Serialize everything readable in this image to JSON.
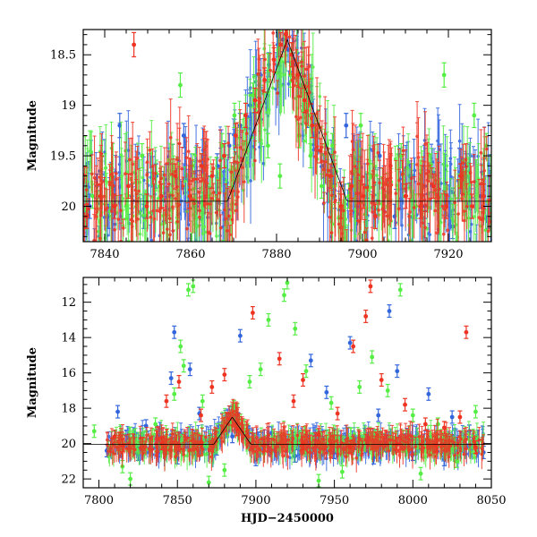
{
  "chart_data": [
    {
      "type": "scatter",
      "panel": "top",
      "title": "",
      "xlabel": "",
      "ylabel": "Magnitude",
      "xlim": [
        7835,
        7930
      ],
      "ylim": [
        20.35,
        18.25
      ],
      "y_inverted": true,
      "x_ticks": [
        7840,
        7860,
        7880,
        7900,
        7920
      ],
      "x_tick_labels": [
        "7840",
        "7860",
        "7880",
        "7900",
        "7920"
      ],
      "y_ticks": [
        18.5,
        19,
        19.5,
        20
      ],
      "y_tick_labels": [
        "18.5",
        "19",
        "19.5",
        "20"
      ],
      "grid": false,
      "legend": "none",
      "series": [
        {
          "color": "#3366dd",
          "points": [
            [
              7836.5,
              20.0
            ],
            [
              7838.2,
              19.8
            ],
            [
              7840.8,
              20.1
            ],
            [
              7843.5,
              19.2
            ],
            [
              7846.3,
              19.9
            ],
            [
              7849.1,
              20.1
            ],
            [
              7852.0,
              19.7
            ],
            [
              7855.2,
              19.9
            ],
            [
              7858.4,
              19.3
            ],
            [
              7861.0,
              20.0
            ],
            [
              7863.5,
              19.8
            ],
            [
              7866.2,
              19.6
            ],
            [
              7869.0,
              19.4
            ],
            [
              7871.5,
              19.2
            ],
            [
              7873.8,
              19.0
            ],
            [
              7876.0,
              18.8
            ],
            [
              7878.2,
              18.6
            ],
            [
              7880.3,
              18.4
            ],
            [
              7881.5,
              18.35
            ],
            [
              7882.7,
              18.45
            ],
            [
              7884.0,
              18.6
            ],
            [
              7885.5,
              18.8
            ],
            [
              7887.2,
              19.1
            ],
            [
              7889.0,
              19.3
            ],
            [
              7891.0,
              19.6
            ],
            [
              7893.5,
              19.9
            ],
            [
              7896.2,
              19.2
            ],
            [
              7898.5,
              20.0
            ],
            [
              7901.0,
              19.8
            ],
            [
              7904.0,
              19.5
            ],
            [
              7907.5,
              20.1
            ],
            [
              7911.0,
              19.7
            ],
            [
              7914.5,
              20.0
            ],
            [
              7917.8,
              19.9
            ],
            [
              7921.0,
              20.2
            ],
            [
              7924.2,
              19.6
            ],
            [
              7927.5,
              19.9
            ],
            [
              7929.3,
              20.1
            ]
          ]
        },
        {
          "color": "#55ee44",
          "points": [
            [
              7837.2,
              19.9
            ],
            [
              7841.5,
              19.7
            ],
            [
              7845.0,
              20.0
            ],
            [
              7848.7,
              19.5
            ],
            [
              7852.8,
              19.8
            ],
            [
              7857.6,
              18.8
            ],
            [
              7860.5,
              19.6
            ],
            [
              7864.0,
              19.9
            ],
            [
              7867.3,
              19.4
            ],
            [
              7870.2,
              19.1
            ],
            [
              7874.5,
              18.9
            ],
            [
              7878.0,
              19.4
            ],
            [
              7880.8,
              19.7
            ],
            [
              7883.2,
              18.7
            ],
            [
              7885.3,
              19.3
            ],
            [
              7887.9,
              19.5
            ],
            [
              7890.5,
              19.8
            ],
            [
              7893.0,
              19.4
            ],
            [
              7896.8,
              19.9
            ],
            [
              7899.6,
              19.2
            ],
            [
              7902.3,
              19.7
            ],
            [
              7905.7,
              19.9
            ],
            [
              7909.0,
              19.5
            ],
            [
              7912.4,
              20.0
            ],
            [
              7915.8,
              19.6
            ],
            [
              7919.0,
              18.7
            ],
            [
              7922.5,
              19.8
            ],
            [
              7926.0,
              19.1
            ],
            [
              7928.8,
              19.4
            ]
          ]
        },
        {
          "color": "#ee3322",
          "points": [
            [
              7835.8,
              20.1
            ],
            [
              7839.0,
              19.9
            ],
            [
              7842.2,
              20.0
            ],
            [
              7845.5,
              19.8
            ],
            [
              7846.8,
              18.4
            ],
            [
              7849.8,
              20.0
            ],
            [
              7853.2,
              19.9
            ],
            [
              7856.5,
              19.7
            ],
            [
              7859.8,
              19.9
            ],
            [
              7862.5,
              19.6
            ],
            [
              7865.0,
              19.7
            ],
            [
              7867.8,
              19.5
            ],
            [
              7870.5,
              19.3
            ],
            [
              7872.8,
              19.1
            ],
            [
              7875.0,
              18.95
            ],
            [
              7877.2,
              18.75
            ],
            [
              7879.4,
              18.55
            ],
            [
              7881.0,
              18.4
            ],
            [
              7882.2,
              18.3
            ],
            [
              7883.5,
              18.5
            ],
            [
              7885.0,
              18.7
            ],
            [
              7886.5,
              18.95
            ],
            [
              7888.3,
              19.2
            ],
            [
              7890.2,
              19.45
            ],
            [
              7892.5,
              19.7
            ],
            [
              7895.0,
              20.0
            ],
            [
              7897.5,
              19.8
            ],
            [
              7900.2,
              19.9
            ],
            [
              7903.0,
              20.1
            ],
            [
              7906.5,
              19.6
            ],
            [
              7910.0,
              19.9
            ],
            [
              7913.5,
              20.0
            ],
            [
              7916.5,
              19.8
            ],
            [
              7919.5,
              20.0
            ],
            [
              7922.8,
              19.7
            ],
            [
              7925.5,
              20.0
            ],
            [
              7928.2,
              19.9
            ]
          ]
        }
      ]
    },
    {
      "type": "scatter",
      "panel": "bottom",
      "title": "",
      "xlabel": "HJD−2450000",
      "ylabel": "Magnitude",
      "xlim": [
        7790,
        8050
      ],
      "ylim": [
        22.5,
        10.6
      ],
      "y_inverted": true,
      "x_ticks": [
        7800,
        7850,
        7900,
        7950,
        8000,
        8050
      ],
      "x_tick_labels": [
        "7800",
        "7850",
        "7900",
        "7950",
        "8000",
        "8050"
      ],
      "y_ticks": [
        12,
        14,
        16,
        18,
        20,
        22
      ],
      "y_tick_labels": [
        "12",
        "14",
        "16",
        "18",
        "20",
        "22"
      ],
      "grid": false,
      "legend": "none",
      "series": [
        {
          "color": "#3366dd",
          "points": [
            [
              7812,
              18.2
            ],
            [
              7830,
              19.0
            ],
            [
              7846,
              16.3
            ],
            [
              7848,
              13.7
            ],
            [
              7858,
              15.8
            ],
            [
              7864,
              18.3
            ],
            [
              7885,
              19.6
            ],
            [
              7890,
              13.9
            ],
            [
              7910,
              19.4
            ],
            [
              7935,
              15.3
            ],
            [
              7945,
              17.1
            ],
            [
              7960,
              14.3
            ],
            [
              7978,
              18.4
            ],
            [
              7985,
              12.5
            ],
            [
              7990,
              15.9
            ],
            [
              8010,
              17.2
            ],
            [
              8025,
              18.5
            ],
            [
              8036,
              19.3
            ],
            [
              7805,
              20.4
            ],
            [
              7825,
              20.6
            ],
            [
              7850,
              20.8
            ],
            [
              7875,
              20.3
            ],
            [
              7900,
              20.9
            ],
            [
              7925,
              20.7
            ],
            [
              7950,
              20.5
            ],
            [
              7975,
              20.8
            ],
            [
              8000,
              20.6
            ],
            [
              8020,
              20.9
            ],
            [
              8045,
              20.5
            ]
          ]
        },
        {
          "color": "#55ee44",
          "points": [
            [
              7797,
              19.3
            ],
            [
              7815,
              21.3
            ],
            [
              7836,
              18.9
            ],
            [
              7840,
              20.1
            ],
            [
              7848,
              17.2
            ],
            [
              7852,
              14.5
            ],
            [
              7854,
              15.6
            ],
            [
              7857,
              11.3
            ],
            [
              7860,
              11.1
            ],
            [
              7866,
              17.6
            ],
            [
              7870,
              22.2
            ],
            [
              7886,
              17.9
            ],
            [
              7896,
              16.5
            ],
            [
              7903,
              15.8
            ],
            [
              7908,
              13.0
            ],
            [
              7912,
              19.8
            ],
            [
              7918,
              11.6
            ],
            [
              7920,
              10.9
            ],
            [
              7925,
              13.5
            ],
            [
              7932,
              15.9
            ],
            [
              7948,
              17.7
            ],
            [
              7955,
              21.6
            ],
            [
              7966,
              16.8
            ],
            [
              7974,
              15.1
            ],
            [
              7984,
              17.0
            ],
            [
              7992,
              11.3
            ],
            [
              8000,
              18.4
            ],
            [
              8016,
              18.9
            ],
            [
              8028,
              21.0
            ],
            [
              8040,
              18.2
            ],
            [
              7820,
              22.0
            ],
            [
              7880,
              21.5
            ],
            [
              7940,
              22.1
            ],
            [
              8005,
              21.7
            ]
          ]
        },
        {
          "color": "#ee3322",
          "points": [
            [
              7810,
              19.6
            ],
            [
              7843,
              17.6
            ],
            [
              7851,
              16.5
            ],
            [
              7865,
              18.4
            ],
            [
              7872,
              16.8
            ],
            [
              7880,
              16.1
            ],
            [
              7888,
              19.2
            ],
            [
              7898,
              12.6
            ],
            [
              7915,
              15.2
            ],
            [
              7924,
              17.6
            ],
            [
              7930,
              16.4
            ],
            [
              7940,
              19.5
            ],
            [
              7952,
              18.3
            ],
            [
              7962,
              14.5
            ],
            [
              7970,
              12.8
            ],
            [
              7973,
              11.1
            ],
            [
              7980,
              16.4
            ],
            [
              7995,
              17.8
            ],
            [
              8008,
              18.9
            ],
            [
              8020,
              19.1
            ],
            [
              8034,
              13.7
            ],
            [
              8030,
              18.5
            ],
            [
              7815,
              20.1
            ],
            [
              7840,
              20.0
            ],
            [
              7865,
              19.9
            ],
            [
              7883,
              18.6
            ],
            [
              7905,
              20.1
            ],
            [
              7930,
              20.0
            ],
            [
              7960,
              20.2
            ],
            [
              7990,
              20.0
            ],
            [
              8015,
              20.1
            ],
            [
              8040,
              20.2
            ]
          ]
        }
      ]
    }
  ]
}
